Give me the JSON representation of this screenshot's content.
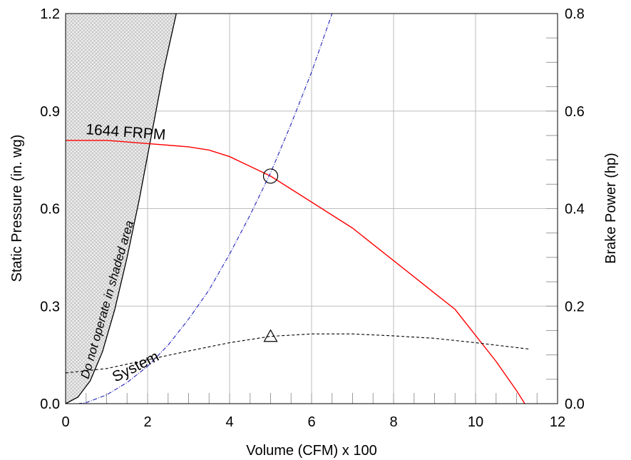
{
  "chart_data": {
    "type": "line",
    "title": "",
    "xlabel": "Volume (CFM) x 100",
    "ylabel": "Static Pressure (in. wg)",
    "y2label": "Brake Power (hp)",
    "xlim": [
      0,
      12
    ],
    "ylim": [
      0,
      1.2
    ],
    "y2lim": [
      0,
      0.8
    ],
    "xticks": [
      "0",
      "2",
      "4",
      "6",
      "8",
      "10",
      "12"
    ],
    "yticks": [
      "0.0",
      "0.3",
      "0.6",
      "0.9",
      "1.2"
    ],
    "y2ticks": [
      "0.0",
      "0.2",
      "0.4",
      "0.6",
      "0.8"
    ],
    "grid": true,
    "series": [
      {
        "name": "1644 FRPM",
        "axis": "left",
        "color": "#ff0000",
        "style": "solid",
        "x": [
          0,
          1,
          2,
          3,
          3.5,
          4,
          4.5,
          5,
          5.5,
          6,
          6.5,
          7,
          7.5,
          8,
          8.5,
          9,
          9.5,
          10,
          10.5,
          11,
          11.2
        ],
        "y": [
          0.81,
          0.81,
          0.8,
          0.79,
          0.78,
          0.76,
          0.73,
          0.7,
          0.66,
          0.62,
          0.58,
          0.54,
          0.49,
          0.44,
          0.39,
          0.34,
          0.29,
          0.21,
          0.13,
          0.04,
          0.0
        ]
      },
      {
        "name": "System",
        "axis": "left",
        "color": "#2222bb",
        "style": "dashdot",
        "x": [
          0.3,
          0.5,
          1,
          1.5,
          2,
          2.5,
          3,
          3.5,
          4,
          4.5,
          5,
          5.5,
          6,
          6.5
        ],
        "y": [
          0.0,
          0.003,
          0.027,
          0.065,
          0.115,
          0.18,
          0.26,
          0.35,
          0.46,
          0.58,
          0.71,
          0.86,
          1.02,
          1.2
        ]
      },
      {
        "name": "",
        "axis": "right",
        "color": "#000000",
        "style": "dashed",
        "x": [
          0,
          1,
          2,
          3,
          4,
          5,
          6,
          7,
          8,
          9,
          10,
          11.3
        ],
        "y": [
          0.063,
          0.072,
          0.09,
          0.108,
          0.125,
          0.138,
          0.143,
          0.143,
          0.139,
          0.134,
          0.125,
          0.112
        ]
      }
    ],
    "shaded_boundary": {
      "x": [
        0,
        0.3,
        0.6,
        0.9,
        1.2,
        1.5,
        1.8,
        2.1,
        2.4,
        2.7
      ],
      "y": [
        0,
        0.02,
        0.07,
        0.16,
        0.29,
        0.45,
        0.63,
        0.83,
        1.03,
        1.2
      ]
    },
    "markers": [
      {
        "shape": "circle",
        "x": 5,
        "y": 0.7,
        "axis": "left"
      },
      {
        "shape": "triangle",
        "x": 5,
        "y": 0.137,
        "axis": "right"
      }
    ],
    "annotations": {
      "rpm_label": "1644  FRPM",
      "system_label": "System",
      "shaded_label": "Do not  operate in shaded   area"
    }
  }
}
